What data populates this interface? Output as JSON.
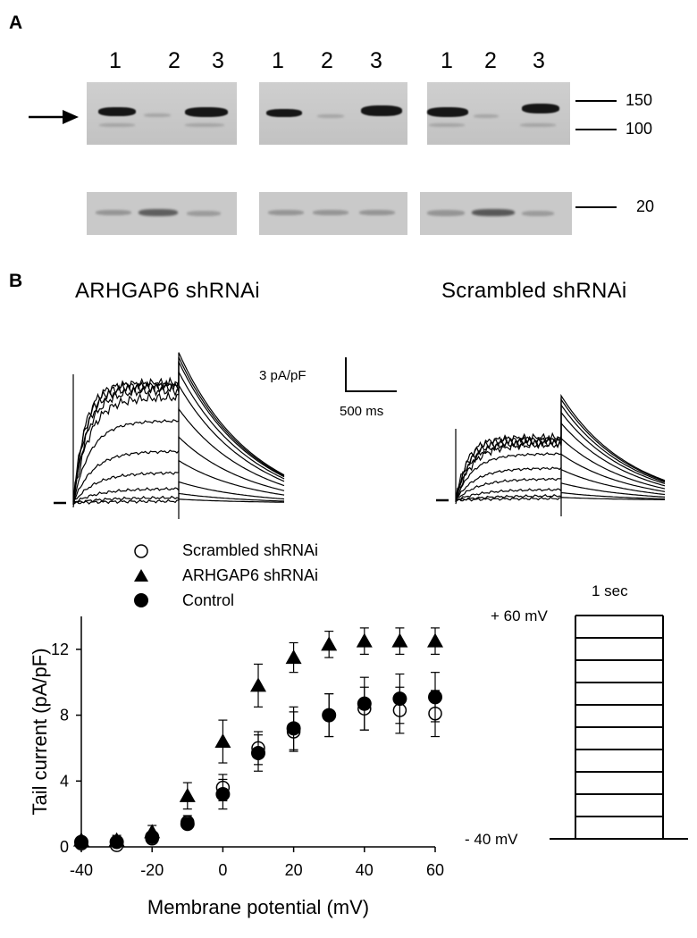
{
  "panel_a": {
    "letter": "A",
    "lane_labels": [
      "1",
      "2",
      "3",
      "1",
      "2",
      "3",
      "1",
      "2",
      "3"
    ],
    "mw_markers": [
      "150",
      "100",
      "20"
    ]
  },
  "panel_b": {
    "letter": "B",
    "left_trace_title": "ARHGAP6 shRNAi",
    "right_trace_title": "Scrambled shRNAi",
    "scale_current": "3 pA/pF",
    "scale_time": "500 ms",
    "protocol": {
      "duration_label": "1 sec",
      "top_label": "+ 60 mV",
      "bottom_label": "- 40 mV"
    }
  },
  "chart_data": {
    "type": "scatter",
    "xlabel": "Membrane potential (mV)",
    "ylabel": "Tail current (pA/pF)",
    "xlim": [
      -40,
      60
    ],
    "ylim": [
      0,
      14
    ],
    "xticks": [
      -40,
      -20,
      0,
      20,
      40,
      60
    ],
    "yticks": [
      0,
      4,
      8,
      12
    ],
    "x": [
      -40,
      -30,
      -20,
      -10,
      0,
      10,
      20,
      30,
      40,
      50,
      60
    ],
    "series": [
      {
        "name": "Scrambled shRNAi",
        "marker": "open-circle",
        "values": [
          0.2,
          0.1,
          0.5,
          1.5,
          3.6,
          6.0,
          7.0,
          8.0,
          8.4,
          8.3,
          8.1
        ],
        "errors": [
          0.2,
          0.2,
          0.3,
          0.4,
          0.8,
          1.0,
          1.2,
          1.3,
          1.3,
          1.4,
          1.4
        ]
      },
      {
        "name": "ARHGAP6 shRNAi",
        "marker": "filled-triangle",
        "values": [
          0.4,
          0.4,
          0.9,
          3.1,
          6.4,
          9.8,
          11.5,
          12.3,
          12.5,
          12.5,
          12.5
        ],
        "errors": [
          0.2,
          0.3,
          0.4,
          0.8,
          1.3,
          1.3,
          0.9,
          0.8,
          0.8,
          0.8,
          0.8
        ]
      },
      {
        "name": "Control",
        "marker": "filled-circle",
        "values": [
          0.3,
          0.3,
          0.6,
          1.4,
          3.2,
          5.7,
          7.2,
          8.0,
          8.7,
          9.0,
          9.1
        ],
        "errors": [
          0.2,
          0.2,
          0.3,
          0.3,
          0.9,
          1.1,
          1.3,
          1.3,
          1.6,
          1.5,
          1.5
        ]
      }
    ],
    "grid": false,
    "legend_position": "top-left"
  }
}
